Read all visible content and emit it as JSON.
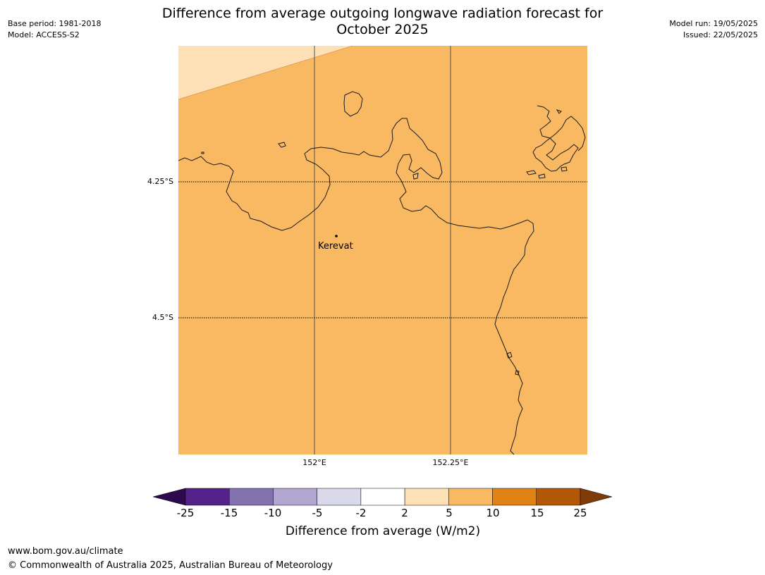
{
  "header": {
    "base_period": "Base period: 1981-2018",
    "model": "Model: ACCESS-S2",
    "model_run": "Model run: 19/05/2025",
    "issued": "Issued: 22/05/2025",
    "title_line1": "Difference from average outgoing longwave radiation forecast for",
    "title_line2": "October 2025"
  },
  "map": {
    "lat_labels": [
      "4.25°S",
      "4.5°S"
    ],
    "lon_labels": [
      "152°E",
      "152.25°E"
    ],
    "place": "Kerevat",
    "colors": {
      "background_category": "#f9b862",
      "light_category": "#fde0b5",
      "coastline": "#000000"
    }
  },
  "colorbar": {
    "ticks": [
      "-25",
      "-15",
      "-10",
      "-5",
      "-2",
      "2",
      "5",
      "10",
      "15",
      "25"
    ],
    "colors": [
      "#2d0a4e",
      "#55228b",
      "#8472ae",
      "#b1a7d1",
      "#d9d9ea",
      "#ffffff",
      "#fde0b5",
      "#f9b862",
      "#e08214",
      "#b35806",
      "#7f3b08"
    ],
    "label": "Difference from average (W/m2)"
  },
  "footer": {
    "url": "www.bom.gov.au/climate",
    "copyright": "© Commonwealth of Australia 2025, Australian Bureau of Meteorology"
  }
}
